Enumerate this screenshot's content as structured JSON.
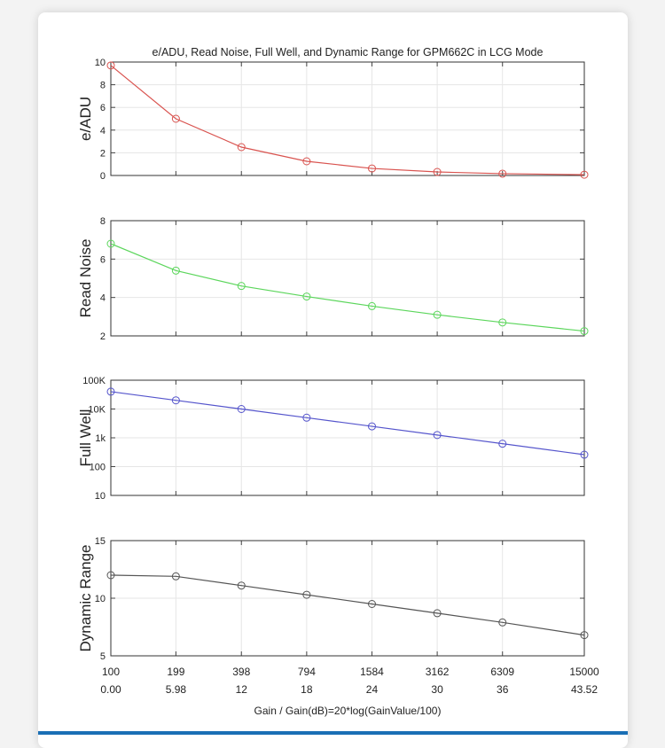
{
  "chart_data": [
    {
      "type": "line",
      "title": "e/ADU, Read Noise, Full Well, and Dynamic Range for GPM662C in LCG Mode",
      "ylabel": "e/ADU",
      "yscale": "linear",
      "ylim": [
        0,
        10
      ],
      "yticks": [
        "0",
        "2",
        "4",
        "6",
        "8",
        "10"
      ],
      "ytick_values": [
        0,
        2,
        4,
        6,
        8,
        10
      ],
      "color": "#d9534f",
      "values": [
        9.7,
        5.0,
        2.5,
        1.25,
        0.62,
        0.31,
        0.16,
        0.07
      ]
    },
    {
      "type": "line",
      "ylabel": "Read Noise",
      "yscale": "linear",
      "ylim": [
        2,
        8
      ],
      "yticks": [
        "2",
        "4",
        "6",
        "8"
      ],
      "ytick_values": [
        2,
        4,
        6,
        8
      ],
      "color": "#5cd65c",
      "values": [
        6.8,
        5.4,
        4.6,
        4.05,
        3.55,
        3.1,
        2.7,
        2.25
      ]
    },
    {
      "type": "line",
      "ylabel": "Full Well",
      "yscale": "log",
      "ylim": [
        10,
        100000
      ],
      "yticks": [
        "10",
        "100",
        "1k",
        "10K",
        "100K"
      ],
      "ytick_values": [
        10,
        100,
        1000,
        10000,
        100000
      ],
      "color": "#5555cc",
      "values": [
        40000,
        20000,
        10000,
        5000,
        2500,
        1250,
        625,
        260
      ]
    },
    {
      "type": "line",
      "ylabel": "Dynamic Range",
      "yscale": "linear",
      "ylim": [
        5,
        15
      ],
      "yticks": [
        "5",
        "10",
        "15"
      ],
      "ytick_values": [
        5,
        10,
        15
      ],
      "color": "#555555",
      "values": [
        12.0,
        11.9,
        11.1,
        10.3,
        9.5,
        8.7,
        7.9,
        6.8
      ],
      "gain_labels": [
        "100",
        "199",
        "398",
        "794",
        "1584",
        "3162",
        "6309",
        "15000"
      ],
      "gain_db_labels": [
        "0.00",
        "5.98",
        "12",
        "18",
        "24",
        "30",
        "36",
        "43.52"
      ],
      "gain_db": [
        0,
        5.98,
        12,
        18,
        24,
        30,
        36,
        43.52
      ],
      "xlabel": "Gain / Gain(dB)=20*log(GainValue/100)"
    }
  ]
}
